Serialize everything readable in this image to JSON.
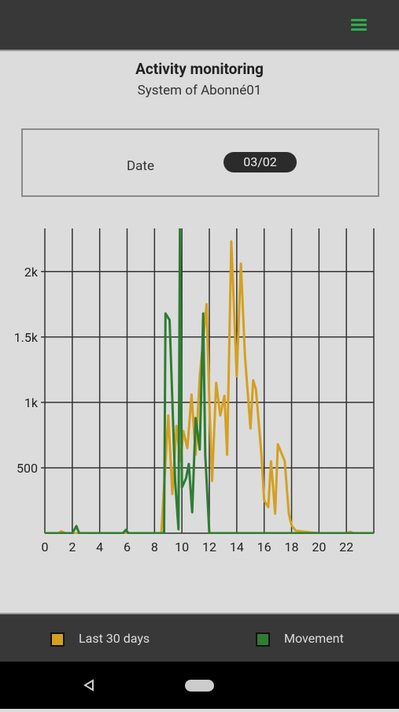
{
  "chart_data": {
    "type": "line",
    "title": "Activity monitoring",
    "subtitle": "System of Abonné01",
    "xlim": [
      0,
      24
    ],
    "xticks": [
      0,
      2,
      4,
      6,
      8,
      10,
      12,
      14,
      16,
      18,
      20,
      22
    ],
    "ylim": [
      0,
      2330
    ],
    "yticks": [
      {
        "value": 500,
        "label": "500"
      },
      {
        "value": 1000,
        "label": "1k"
      },
      {
        "value": 1500,
        "label": "1.5k"
      },
      {
        "value": 2000,
        "label": "2k"
      }
    ],
    "grid": true,
    "series": [
      {
        "name": "Last 30 days",
        "color": "#d4a020",
        "x": [
          0,
          1,
          1.2,
          1.5,
          8.5,
          9,
          9.3,
          9.6,
          9.9,
          10.1,
          10.4,
          10.7,
          11,
          11.3,
          11.8,
          12,
          12.2,
          12.5,
          12.8,
          13.1,
          13.3,
          13.6,
          14,
          14.3,
          14.6,
          15,
          15.2,
          15.4,
          15.8,
          16,
          16.3,
          16.5,
          16.8,
          17,
          17.5,
          17.8,
          18,
          18.3,
          19,
          19.5,
          20,
          22,
          22.3,
          22.5,
          24
        ],
        "values": [
          0,
          0,
          15,
          0,
          0,
          900,
          300,
          820,
          550,
          780,
          650,
          1060,
          600,
          1200,
          1750,
          1000,
          400,
          1150,
          900,
          1050,
          600,
          2230,
          1200,
          2060,
          1350,
          800,
          1170,
          1100,
          600,
          250,
          200,
          550,
          150,
          680,
          550,
          150,
          60,
          20,
          10,
          5,
          0,
          0,
          10,
          0,
          0
        ]
      },
      {
        "name": "Movement",
        "color": "#2e7d32",
        "x": [
          0,
          2,
          2.3,
          2.5,
          5.7,
          5.9,
          6.1,
          8.7,
          8.8,
          9.1,
          9.5,
          9.75,
          9.85,
          10,
          10.3,
          10.5,
          10.75,
          11,
          11.3,
          11.55,
          11.7,
          12,
          24
        ],
        "values": [
          0,
          0,
          55,
          0,
          0,
          25,
          0,
          0,
          1680,
          1630,
          400,
          30,
          2330,
          350,
          420,
          530,
          160,
          880,
          640,
          1680,
          600,
          0,
          0
        ]
      }
    ]
  },
  "date_selector": {
    "label": "Date",
    "value": "03/02"
  }
}
